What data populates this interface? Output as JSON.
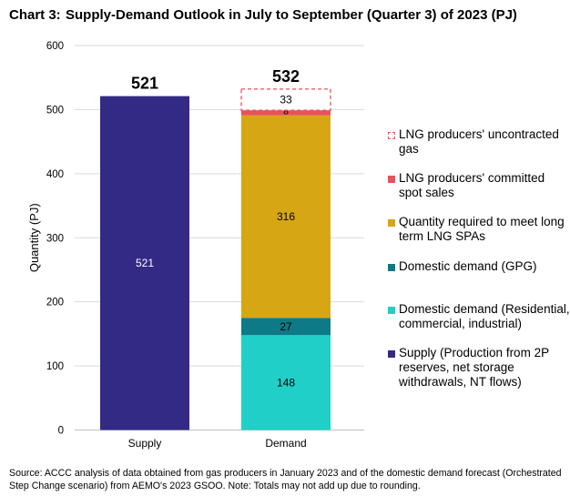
{
  "header": {
    "chart_number": "Chart 3:",
    "title": "Supply-Demand Outlook in July to September (Quarter 3) of 2023 (PJ)"
  },
  "source_note": "Source:    ACCC analysis of data obtained from gas producers in January 2023 and of the domestic demand forecast (Orchestrated Step Change scenario) from AEMO's 2023 GSOO. Note: Totals may not add up due to rounding.",
  "colors": {
    "supply": "#332A86",
    "domestic_residential": "#20D0C8",
    "domestic_gpg": "#0E7A87",
    "long_term_spa": "#D6A615",
    "committed_spot": "#E8525A",
    "uncontracted": "#E8525A"
  },
  "chart_data": {
    "type": "bar",
    "stacked": true,
    "categories": [
      "Supply",
      "Demand"
    ],
    "ylabel": "Quantity (PJ)",
    "ylim": [
      0,
      600
    ],
    "yticks": [
      0,
      100,
      200,
      300,
      400,
      500,
      600
    ],
    "totals": [
      521,
      532
    ],
    "series": [
      {
        "name": "Supply (Production from 2P reserves, net storage withdrawals, NT flows)",
        "values": [
          521,
          0
        ],
        "labels": [
          "521",
          ""
        ],
        "color": "#332A86",
        "style": "solid"
      },
      {
        "name": "Domestic demand (Residential, commercial, industrial)",
        "values": [
          0,
          148
        ],
        "labels": [
          "",
          "148"
        ],
        "color": "#20D0C8",
        "style": "solid"
      },
      {
        "name": "Domestic demand (GPG)",
        "values": [
          0,
          27
        ],
        "labels": [
          "",
          "27"
        ],
        "color": "#0E7A87",
        "style": "solid"
      },
      {
        "name": "Quantity required to meet long term LNG SPAs",
        "values": [
          0,
          316
        ],
        "labels": [
          "",
          "316"
        ],
        "color": "#D6A615",
        "style": "solid"
      },
      {
        "name": "LNG producers' committed spot sales",
        "values": [
          0,
          8
        ],
        "labels": [
          "",
          "8"
        ],
        "color": "#E8525A",
        "style": "solid"
      },
      {
        "name": "LNG producers' uncontracted gas",
        "values": [
          0,
          33
        ],
        "labels": [
          "",
          "33"
        ],
        "color": "#E8525A",
        "style": "dashed"
      }
    ],
    "legend": {
      "placement": "right",
      "order": [
        "LNG producers' uncontracted gas",
        "LNG producers' committed spot sales",
        "Quantity required to meet long term LNG SPAs",
        "Domestic demand (GPG)",
        "Domestic demand (Residential, commercial, industrial)",
        "Supply (Production from 2P reserves, net storage withdrawals, NT flows)"
      ]
    }
  }
}
